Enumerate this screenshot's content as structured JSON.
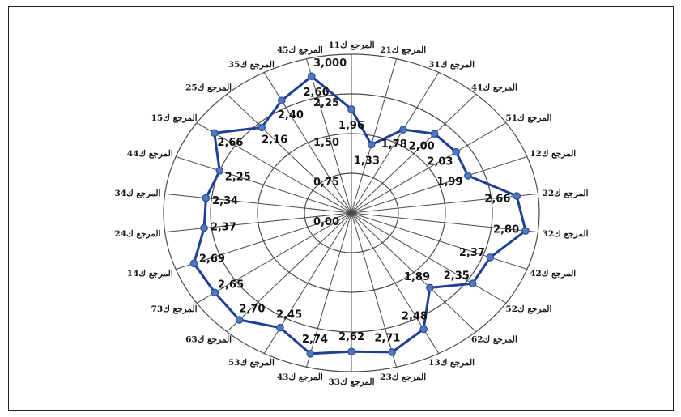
{
  "chart_data": {
    "type": "radar",
    "title": "",
    "rlim": [
      0,
      3
    ],
    "rticks": [
      "0,00",
      "0,75",
      "1,50",
      "2,25",
      "3,000"
    ],
    "categories": [
      "المرجع ك11",
      "المرجع ك21",
      "المرجع ك31",
      "المرجع ك41",
      "المرجع ك51",
      "المرجع ك12",
      "المرجع ك22",
      "المرجع ك32",
      "المرجع ك42",
      "المرجع ك52",
      "المرجع ك62",
      "المرجع ك13",
      "المرجع ك23",
      "المرجع ك33",
      "المرجع ك43",
      "المرجع ك53",
      "المرجع ك63",
      "المرجع ك73",
      "المرجع ك14",
      "المرجع ك24",
      "المرجع ك34",
      "المرجع ك44",
      "المرجع ك15",
      "المرجع ك25",
      "المرجع ك35",
      "المرجع ك45"
    ],
    "series": [
      {
        "values": [
          1.96,
          1.33,
          1.78,
          2.0,
          2.03,
          1.99,
          2.66,
          2.8,
          2.37,
          2.35,
          1.89,
          2.48,
          2.71,
          2.62,
          2.74,
          2.45,
          2.7,
          2.65,
          2.69,
          2.37,
          2.34,
          2.25,
          2.66,
          2.16,
          2.4,
          2.66
        ],
        "labels": [
          "1,96",
          "1,33",
          "1,78",
          "2,00",
          "2,03",
          "1,99",
          "2,66",
          "2,80",
          "2,37",
          "2,35",
          "1,89",
          "2,48",
          "2,71",
          "2,62",
          "2,74",
          "2,45",
          "2,70",
          "2,65",
          "2,69",
          "2,37",
          "2,34",
          "2,25",
          "2,66",
          "2,16",
          "2,40",
          "2,66"
        ],
        "color": "#1f3f95",
        "marker_color": "#4f78bd"
      }
    ],
    "grid": true,
    "legend": "none"
  }
}
